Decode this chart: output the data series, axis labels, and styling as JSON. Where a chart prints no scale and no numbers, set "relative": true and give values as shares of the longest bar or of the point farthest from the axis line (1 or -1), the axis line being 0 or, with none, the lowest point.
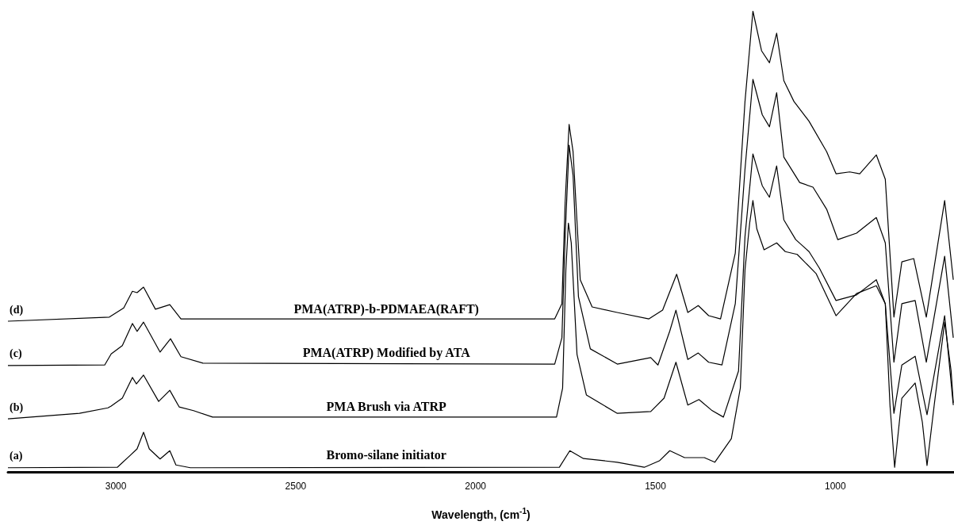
{
  "chart_data": {
    "type": "line",
    "relative": true,
    "xlabel": "Wavelength, (cm$^{-1}$)",
    "xlim": [
      3300,
      670
    ],
    "xticks": [
      3000,
      2500,
      2000,
      1500,
      1000
    ],
    "legend": false,
    "grid": false,
    "annotations": [
      "(a)",
      "(b)",
      "(c)",
      "(d)"
    ],
    "series": [
      {
        "name": "Bromo-silane initiator",
        "color": "#000000",
        "x": [
          3300,
          2996,
          2960,
          2941,
          2923,
          2907,
          2877,
          2850,
          2833,
          2793,
          1767,
          1738,
          1700,
          1606,
          1531,
          1489,
          1460,
          1419,
          1364,
          1335,
          1289,
          1264,
          1251,
          1238,
          1229,
          1218,
          1198,
          1163,
          1139,
          1106,
          1053,
          998,
          941,
          886,
          861,
          848,
          835,
          815,
          778,
          758,
          745,
          725,
          696,
          678,
          672
        ],
        "values": [
          0.009,
          0.01,
          0.036,
          0.05,
          0.086,
          0.05,
          0.028,
          0.046,
          0.015,
          0.009,
          0.01,
          0.046,
          0.029,
          0.021,
          0.01,
          0.024,
          0.046,
          0.031,
          0.031,
          0.021,
          0.072,
          0.182,
          0.439,
          0.54,
          0.589,
          0.527,
          0.482,
          0.497,
          0.478,
          0.472,
          0.43,
          0.339,
          0.387,
          0.404,
          0.365,
          0.145,
          0.01,
          0.16,
          0.193,
          0.108,
          0.014,
          0.145,
          0.325,
          0.219,
          0.15
        ]
      },
      {
        "name": "PMA Brush via ATRP",
        "color": "#000000",
        "x": [
          3300,
          3101,
          3022,
          3013,
          2982,
          2954,
          2943,
          2923,
          2881,
          2850,
          2824,
          2784,
          2731,
          1775,
          1758,
          1749,
          1742,
          1734,
          1718,
          1692,
          1606,
          1513,
          1476,
          1443,
          1410,
          1379,
          1344,
          1311,
          1269,
          1251,
          1229,
          1203,
          1183,
          1163,
          1143,
          1110,
          1073,
          1044,
          998,
          941,
          886,
          861,
          837,
          815,
          778,
          745,
          696,
          672
        ],
        "values": [
          0.115,
          0.127,
          0.139,
          0.143,
          0.16,
          0.205,
          0.191,
          0.21,
          0.153,
          0.177,
          0.141,
          0.133,
          0.119,
          0.119,
          0.182,
          0.439,
          0.54,
          0.497,
          0.255,
          0.167,
          0.127,
          0.131,
          0.16,
          0.238,
          0.145,
          0.157,
          0.134,
          0.119,
          0.219,
          0.511,
          0.69,
          0.621,
          0.596,
          0.664,
          0.547,
          0.504,
          0.478,
          0.442,
          0.372,
          0.384,
          0.417,
          0.365,
          0.127,
          0.232,
          0.251,
          0.124,
          0.339,
          0.145
        ]
      },
      {
        "name": "PMA(ATRP) Modified by ATA",
        "color": "#000000",
        "x": [
          3300,
          3031,
          3013,
          2982,
          2954,
          2941,
          2923,
          2877,
          2848,
          2819,
          2758,
          1780,
          1760,
          1751,
          1740,
          1729,
          1714,
          1681,
          1606,
          1513,
          1493,
          1460,
          1443,
          1410,
          1381,
          1352,
          1315,
          1278,
          1251,
          1229,
          1203,
          1183,
          1163,
          1143,
          1099,
          1062,
          1024,
          993,
          941,
          886,
          861,
          837,
          815,
          778,
          747,
          696,
          672
        ],
        "values": [
          0.231,
          0.232,
          0.256,
          0.274,
          0.322,
          0.305,
          0.325,
          0.26,
          0.289,
          0.25,
          0.236,
          0.234,
          0.291,
          0.511,
          0.709,
          0.644,
          0.38,
          0.267,
          0.234,
          0.248,
          0.232,
          0.306,
          0.351,
          0.244,
          0.258,
          0.238,
          0.232,
          0.365,
          0.657,
          0.852,
          0.775,
          0.749,
          0.823,
          0.683,
          0.628,
          0.618,
          0.57,
          0.504,
          0.518,
          0.552,
          0.497,
          0.238,
          0.365,
          0.372,
          0.238,
          0.468,
          0.291
        ]
      },
      {
        "name": "PMA(ATRP)-b-PDMAEA(RAFT)",
        "color": "#000000",
        "x": [
          3300,
          3018,
          2978,
          2954,
          2941,
          2923,
          2890,
          2850,
          2819,
          1780,
          1760,
          1751,
          1740,
          1729,
          1709,
          1676,
          1606,
          1518,
          1480,
          1441,
          1410,
          1381,
          1352,
          1319,
          1278,
          1251,
          1229,
          1205,
          1183,
          1163,
          1143,
          1115,
          1073,
          1024,
          998,
          960,
          932,
          886,
          861,
          837,
          815,
          782,
          747,
          696,
          672
        ],
        "values": [
          0.327,
          0.336,
          0.356,
          0.392,
          0.389,
          0.401,
          0.353,
          0.363,
          0.332,
          0.332,
          0.365,
          0.585,
          0.754,
          0.695,
          0.417,
          0.358,
          0.346,
          0.332,
          0.351,
          0.429,
          0.346,
          0.361,
          0.339,
          0.332,
          0.475,
          0.804,
          1.0,
          0.914,
          0.888,
          0.952,
          0.849,
          0.804,
          0.761,
          0.695,
          0.647,
          0.651,
          0.647,
          0.688,
          0.635,
          0.336,
          0.456,
          0.463,
          0.336,
          0.589,
          0.417
        ]
      }
    ]
  }
}
